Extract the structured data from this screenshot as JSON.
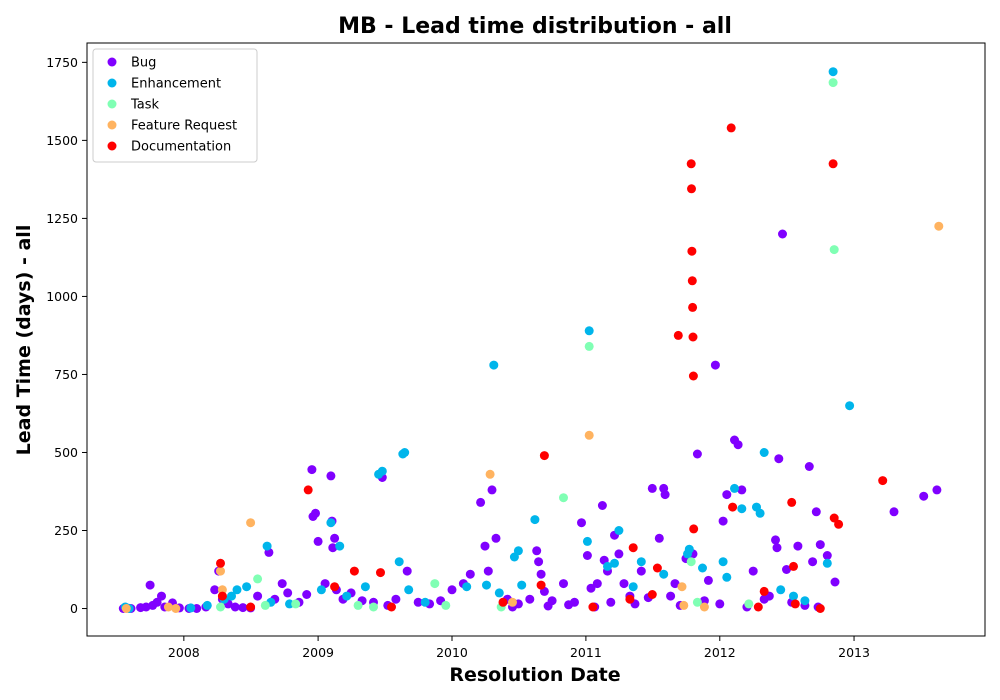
{
  "chart_data": {
    "type": "scatter",
    "title": "MB - Lead time distribution - all",
    "xlabel": "Resolution Date",
    "ylabel": "Lead Time (days) - all",
    "x_ticks": [
      "2008",
      "2009",
      "2010",
      "2011",
      "2012",
      "2013"
    ],
    "y_ticks": [
      0,
      250,
      500,
      750,
      1000,
      1250,
      1500,
      1750
    ],
    "xlim": [
      "2007-04-12",
      "2013-12-24"
    ],
    "ylim": [
      -88,
      1812
    ],
    "grid": false,
    "legend_position": "top-left",
    "series": [
      {
        "name": "Bug",
        "color": "#8000ff",
        "points": [
          [
            "2007-07-20",
            0
          ],
          [
            "2007-07-26",
            2
          ],
          [
            "2007-08-03",
            1
          ],
          [
            "2007-08-10",
            0
          ],
          [
            "2007-09-05",
            3
          ],
          [
            "2007-09-20",
            5
          ],
          [
            "2007-10-01",
            75
          ],
          [
            "2007-10-08",
            10
          ],
          [
            "2007-10-20",
            20
          ],
          [
            "2007-11-01",
            40
          ],
          [
            "2007-11-10",
            5
          ],
          [
            "2007-12-01",
            18
          ],
          [
            "2007-12-20",
            2
          ],
          [
            "2008-01-15",
            0
          ],
          [
            "2008-02-05",
            0
          ],
          [
            "2008-03-01",
            5
          ],
          [
            "2008-03-25",
            60
          ],
          [
            "2008-04-05",
            120
          ],
          [
            "2008-04-15",
            30
          ],
          [
            "2008-05-01",
            15
          ],
          [
            "2008-05-20",
            5
          ],
          [
            "2008-06-10",
            3
          ],
          [
            "2008-07-01",
            2
          ],
          [
            "2008-07-20",
            40
          ],
          [
            "2008-08-20",
            180
          ],
          [
            "2008-09-05",
            30
          ],
          [
            "2008-09-25",
            80
          ],
          [
            "2008-10-10",
            50
          ],
          [
            "2008-11-10",
            20
          ],
          [
            "2008-12-01",
            45
          ],
          [
            "2008-12-15",
            445
          ],
          [
            "2008-12-18",
            295
          ],
          [
            "2008-12-25",
            305
          ],
          [
            "2009-01-01",
            215
          ],
          [
            "2009-01-20",
            80
          ],
          [
            "2009-02-05",
            425
          ],
          [
            "2009-02-08",
            280
          ],
          [
            "2009-02-10",
            195
          ],
          [
            "2009-02-15",
            225
          ],
          [
            "2009-02-20",
            60
          ],
          [
            "2009-03-10",
            30
          ],
          [
            "2009-04-01",
            50
          ],
          [
            "2009-05-01",
            25
          ],
          [
            "2009-06-01",
            20
          ],
          [
            "2009-06-25",
            420
          ],
          [
            "2009-07-10",
            10
          ],
          [
            "2009-08-01",
            30
          ],
          [
            "2009-09-01",
            120
          ],
          [
            "2009-10-01",
            20
          ],
          [
            "2009-11-01",
            15
          ],
          [
            "2009-12-01",
            25
          ],
          [
            "2010-01-01",
            60
          ],
          [
            "2010-02-01",
            80
          ],
          [
            "2010-02-20",
            110
          ],
          [
            "2010-03-20",
            340
          ],
          [
            "2010-04-01",
            200
          ],
          [
            "2010-04-10",
            120
          ],
          [
            "2010-04-20",
            380
          ],
          [
            "2010-05-01",
            225
          ],
          [
            "2010-06-01",
            30
          ],
          [
            "2010-07-01",
            15
          ],
          [
            "2010-08-01",
            30
          ],
          [
            "2010-08-20",
            185
          ],
          [
            "2010-08-25",
            150
          ],
          [
            "2010-09-01",
            110
          ],
          [
            "2010-09-10",
            55
          ],
          [
            "2010-10-01",
            25
          ],
          [
            "2010-11-01",
            80
          ],
          [
            "2010-12-01",
            20
          ],
          [
            "2010-12-20",
            275
          ],
          [
            "2011-01-05",
            170
          ],
          [
            "2011-01-15",
            65
          ],
          [
            "2011-02-01",
            80
          ],
          [
            "2011-02-15",
            330
          ],
          [
            "2011-02-20",
            155
          ],
          [
            "2011-03-01",
            120
          ],
          [
            "2011-03-20",
            235
          ],
          [
            "2011-04-01",
            175
          ],
          [
            "2011-04-15",
            80
          ],
          [
            "2011-05-01",
            40
          ],
          [
            "2011-06-01",
            120
          ],
          [
            "2011-07-01",
            385
          ],
          [
            "2011-07-20",
            225
          ],
          [
            "2011-08-01",
            385
          ],
          [
            "2011-08-05",
            365
          ],
          [
            "2011-08-20",
            40
          ],
          [
            "2011-09-01",
            80
          ],
          [
            "2011-10-01",
            160
          ],
          [
            "2011-10-20",
            175
          ],
          [
            "2011-11-01",
            495
          ],
          [
            "2011-12-01",
            90
          ],
          [
            "2011-12-20",
            780
          ],
          [
            "2012-01-10",
            280
          ],
          [
            "2012-01-20",
            365
          ],
          [
            "2012-02-10",
            540
          ],
          [
            "2012-02-20",
            525
          ],
          [
            "2012-03-01",
            380
          ],
          [
            "2012-04-01",
            120
          ],
          [
            "2012-05-01",
            30
          ],
          [
            "2012-06-01",
            220
          ],
          [
            "2012-06-05",
            195
          ],
          [
            "2012-06-10",
            480
          ],
          [
            "2012-06-20",
            1200
          ],
          [
            "2012-07-01",
            125
          ],
          [
            "2012-08-01",
            200
          ],
          [
            "2012-09-01",
            455
          ],
          [
            "2012-09-10",
            150
          ],
          [
            "2012-09-20",
            310
          ],
          [
            "2012-10-01",
            205
          ],
          [
            "2012-10-20",
            170
          ],
          [
            "2012-11-10",
            85
          ],
          [
            "2013-04-20",
            310
          ],
          [
            "2013-07-10",
            360
          ],
          [
            "2013-08-15",
            380
          ],
          [
            "2010-06-15",
            5
          ],
          [
            "2010-09-20",
            8
          ],
          [
            "2010-11-15",
            12
          ],
          [
            "2011-01-25",
            5
          ],
          [
            "2011-03-10",
            20
          ],
          [
            "2011-05-15",
            15
          ],
          [
            "2011-06-20",
            35
          ],
          [
            "2011-09-15",
            10
          ],
          [
            "2011-11-20",
            25
          ],
          [
            "2012-01-01",
            15
          ],
          [
            "2012-03-15",
            5
          ],
          [
            "2012-05-15",
            40
          ],
          [
            "2012-07-15",
            20
          ],
          [
            "2012-08-20",
            10
          ],
          [
            "2012-09-25",
            5
          ]
        ]
      },
      {
        "name": "Enhancement",
        "color": "#00b5eb",
        "points": [
          [
            "2007-07-25",
            5
          ],
          [
            "2007-08-05",
            0
          ],
          [
            "2008-01-20",
            2
          ],
          [
            "2008-03-05",
            10
          ],
          [
            "2008-04-20",
            30
          ],
          [
            "2008-05-10",
            40
          ],
          [
            "2008-05-25",
            60
          ],
          [
            "2008-06-20",
            70
          ],
          [
            "2008-08-15",
            200
          ],
          [
            "2008-08-25",
            20
          ],
          [
            "2008-10-15",
            15
          ],
          [
            "2009-01-10",
            60
          ],
          [
            "2009-02-05",
            275
          ],
          [
            "2009-03-01",
            200
          ],
          [
            "2009-03-20",
            40
          ],
          [
            "2009-05-10",
            70
          ],
          [
            "2009-06-15",
            430
          ],
          [
            "2009-06-25",
            440
          ],
          [
            "2009-08-10",
            150
          ],
          [
            "2009-08-20",
            495
          ],
          [
            "2009-08-25",
            500
          ],
          [
            "2009-09-05",
            60
          ],
          [
            "2009-10-20",
            20
          ],
          [
            "2010-02-10",
            70
          ],
          [
            "2010-04-05",
            75
          ],
          [
            "2010-04-25",
            780
          ],
          [
            "2010-05-10",
            50
          ],
          [
            "2010-06-20",
            165
          ],
          [
            "2010-07-01",
            185
          ],
          [
            "2010-07-10",
            75
          ],
          [
            "2010-08-15",
            285
          ],
          [
            "2011-01-05",
            215
          ],
          [
            "2011-01-10",
            890
          ],
          [
            "2011-03-01",
            135
          ],
          [
            "2011-03-20",
            145
          ],
          [
            "2011-04-01",
            250
          ],
          [
            "2011-05-10",
            70
          ],
          [
            "2011-06-01",
            150
          ],
          [
            "2011-08-01",
            110
          ],
          [
            "2011-10-05",
            175
          ],
          [
            "2011-10-10",
            190
          ],
          [
            "2011-11-15",
            130
          ],
          [
            "2012-01-10",
            150
          ],
          [
            "2012-01-20",
            100
          ],
          [
            "2012-02-10",
            385
          ],
          [
            "2012-03-01",
            320
          ],
          [
            "2012-04-10",
            325
          ],
          [
            "2012-04-20",
            305
          ],
          [
            "2012-05-01",
            500
          ],
          [
            "2012-06-15",
            60
          ],
          [
            "2012-07-20",
            40
          ],
          [
            "2012-08-20",
            25
          ],
          [
            "2012-10-20",
            145
          ],
          [
            "2012-11-05",
            1720
          ],
          [
            "2012-12-20",
            650
          ]
        ]
      },
      {
        "name": "Task",
        "color": "#80ffb4",
        "points": [
          [
            "2008-04-10",
            5
          ],
          [
            "2008-07-20",
            95
          ],
          [
            "2008-08-10",
            10
          ],
          [
            "2008-11-01",
            15
          ],
          [
            "2009-04-20",
            10
          ],
          [
            "2009-06-01",
            5
          ],
          [
            "2009-11-15",
            80
          ],
          [
            "2009-12-15",
            10
          ],
          [
            "2010-05-15",
            5
          ],
          [
            "2010-11-01",
            355
          ],
          [
            "2011-01-10",
            840
          ],
          [
            "2011-10-15",
            150
          ],
          [
            "2011-11-01",
            20
          ],
          [
            "2012-03-20",
            15
          ],
          [
            "2012-11-05",
            1685
          ],
          [
            "2012-11-08",
            1150
          ]
        ]
      },
      {
        "name": "Feature Request",
        "color": "#ffb360",
        "points": [
          [
            "2007-07-28",
            0
          ],
          [
            "2007-11-20",
            5
          ],
          [
            "2007-12-10",
            0
          ],
          [
            "2008-04-10",
            120
          ],
          [
            "2008-04-15",
            60
          ],
          [
            "2008-07-01",
            275
          ],
          [
            "2010-04-15",
            430
          ],
          [
            "2010-06-15",
            20
          ],
          [
            "2011-01-10",
            555
          ],
          [
            "2011-09-20",
            70
          ],
          [
            "2011-09-25",
            10
          ],
          [
            "2011-11-20",
            5
          ],
          [
            "2013-08-20",
            1225
          ]
        ]
      },
      {
        "name": "Documentation",
        "color": "#ff0000",
        "points": [
          [
            "2008-04-10",
            145
          ],
          [
            "2008-04-15",
            40
          ],
          [
            "2008-07-01",
            5
          ],
          [
            "2008-12-05",
            380
          ],
          [
            "2009-02-15",
            70
          ],
          [
            "2009-04-10",
            120
          ],
          [
            "2009-06-20",
            115
          ],
          [
            "2009-07-20",
            5
          ],
          [
            "2010-05-20",
            20
          ],
          [
            "2010-09-01",
            75
          ],
          [
            "2010-09-10",
            490
          ],
          [
            "2011-01-20",
            5
          ],
          [
            "2011-05-01",
            30
          ],
          [
            "2011-05-10",
            195
          ],
          [
            "2011-07-01",
            45
          ],
          [
            "2011-07-15",
            130
          ],
          [
            "2011-09-10",
            875
          ],
          [
            "2011-10-15",
            1425
          ],
          [
            "2011-10-16",
            1345
          ],
          [
            "2011-10-17",
            1145
          ],
          [
            "2011-10-18",
            1050
          ],
          [
            "2011-10-19",
            965
          ],
          [
            "2011-10-20",
            870
          ],
          [
            "2011-10-21",
            745
          ],
          [
            "2011-10-22",
            255
          ],
          [
            "2012-02-01",
            1540
          ],
          [
            "2012-02-05",
            325
          ],
          [
            "2012-04-15",
            5
          ],
          [
            "2012-05-01",
            55
          ],
          [
            "2012-07-15",
            340
          ],
          [
            "2012-07-20",
            135
          ],
          [
            "2012-07-25",
            15
          ],
          [
            "2012-10-01",
            0
          ],
          [
            "2012-11-05",
            1425
          ],
          [
            "2012-11-08",
            290
          ],
          [
            "2012-11-20",
            270
          ],
          [
            "2013-03-20",
            410
          ]
        ]
      }
    ]
  }
}
